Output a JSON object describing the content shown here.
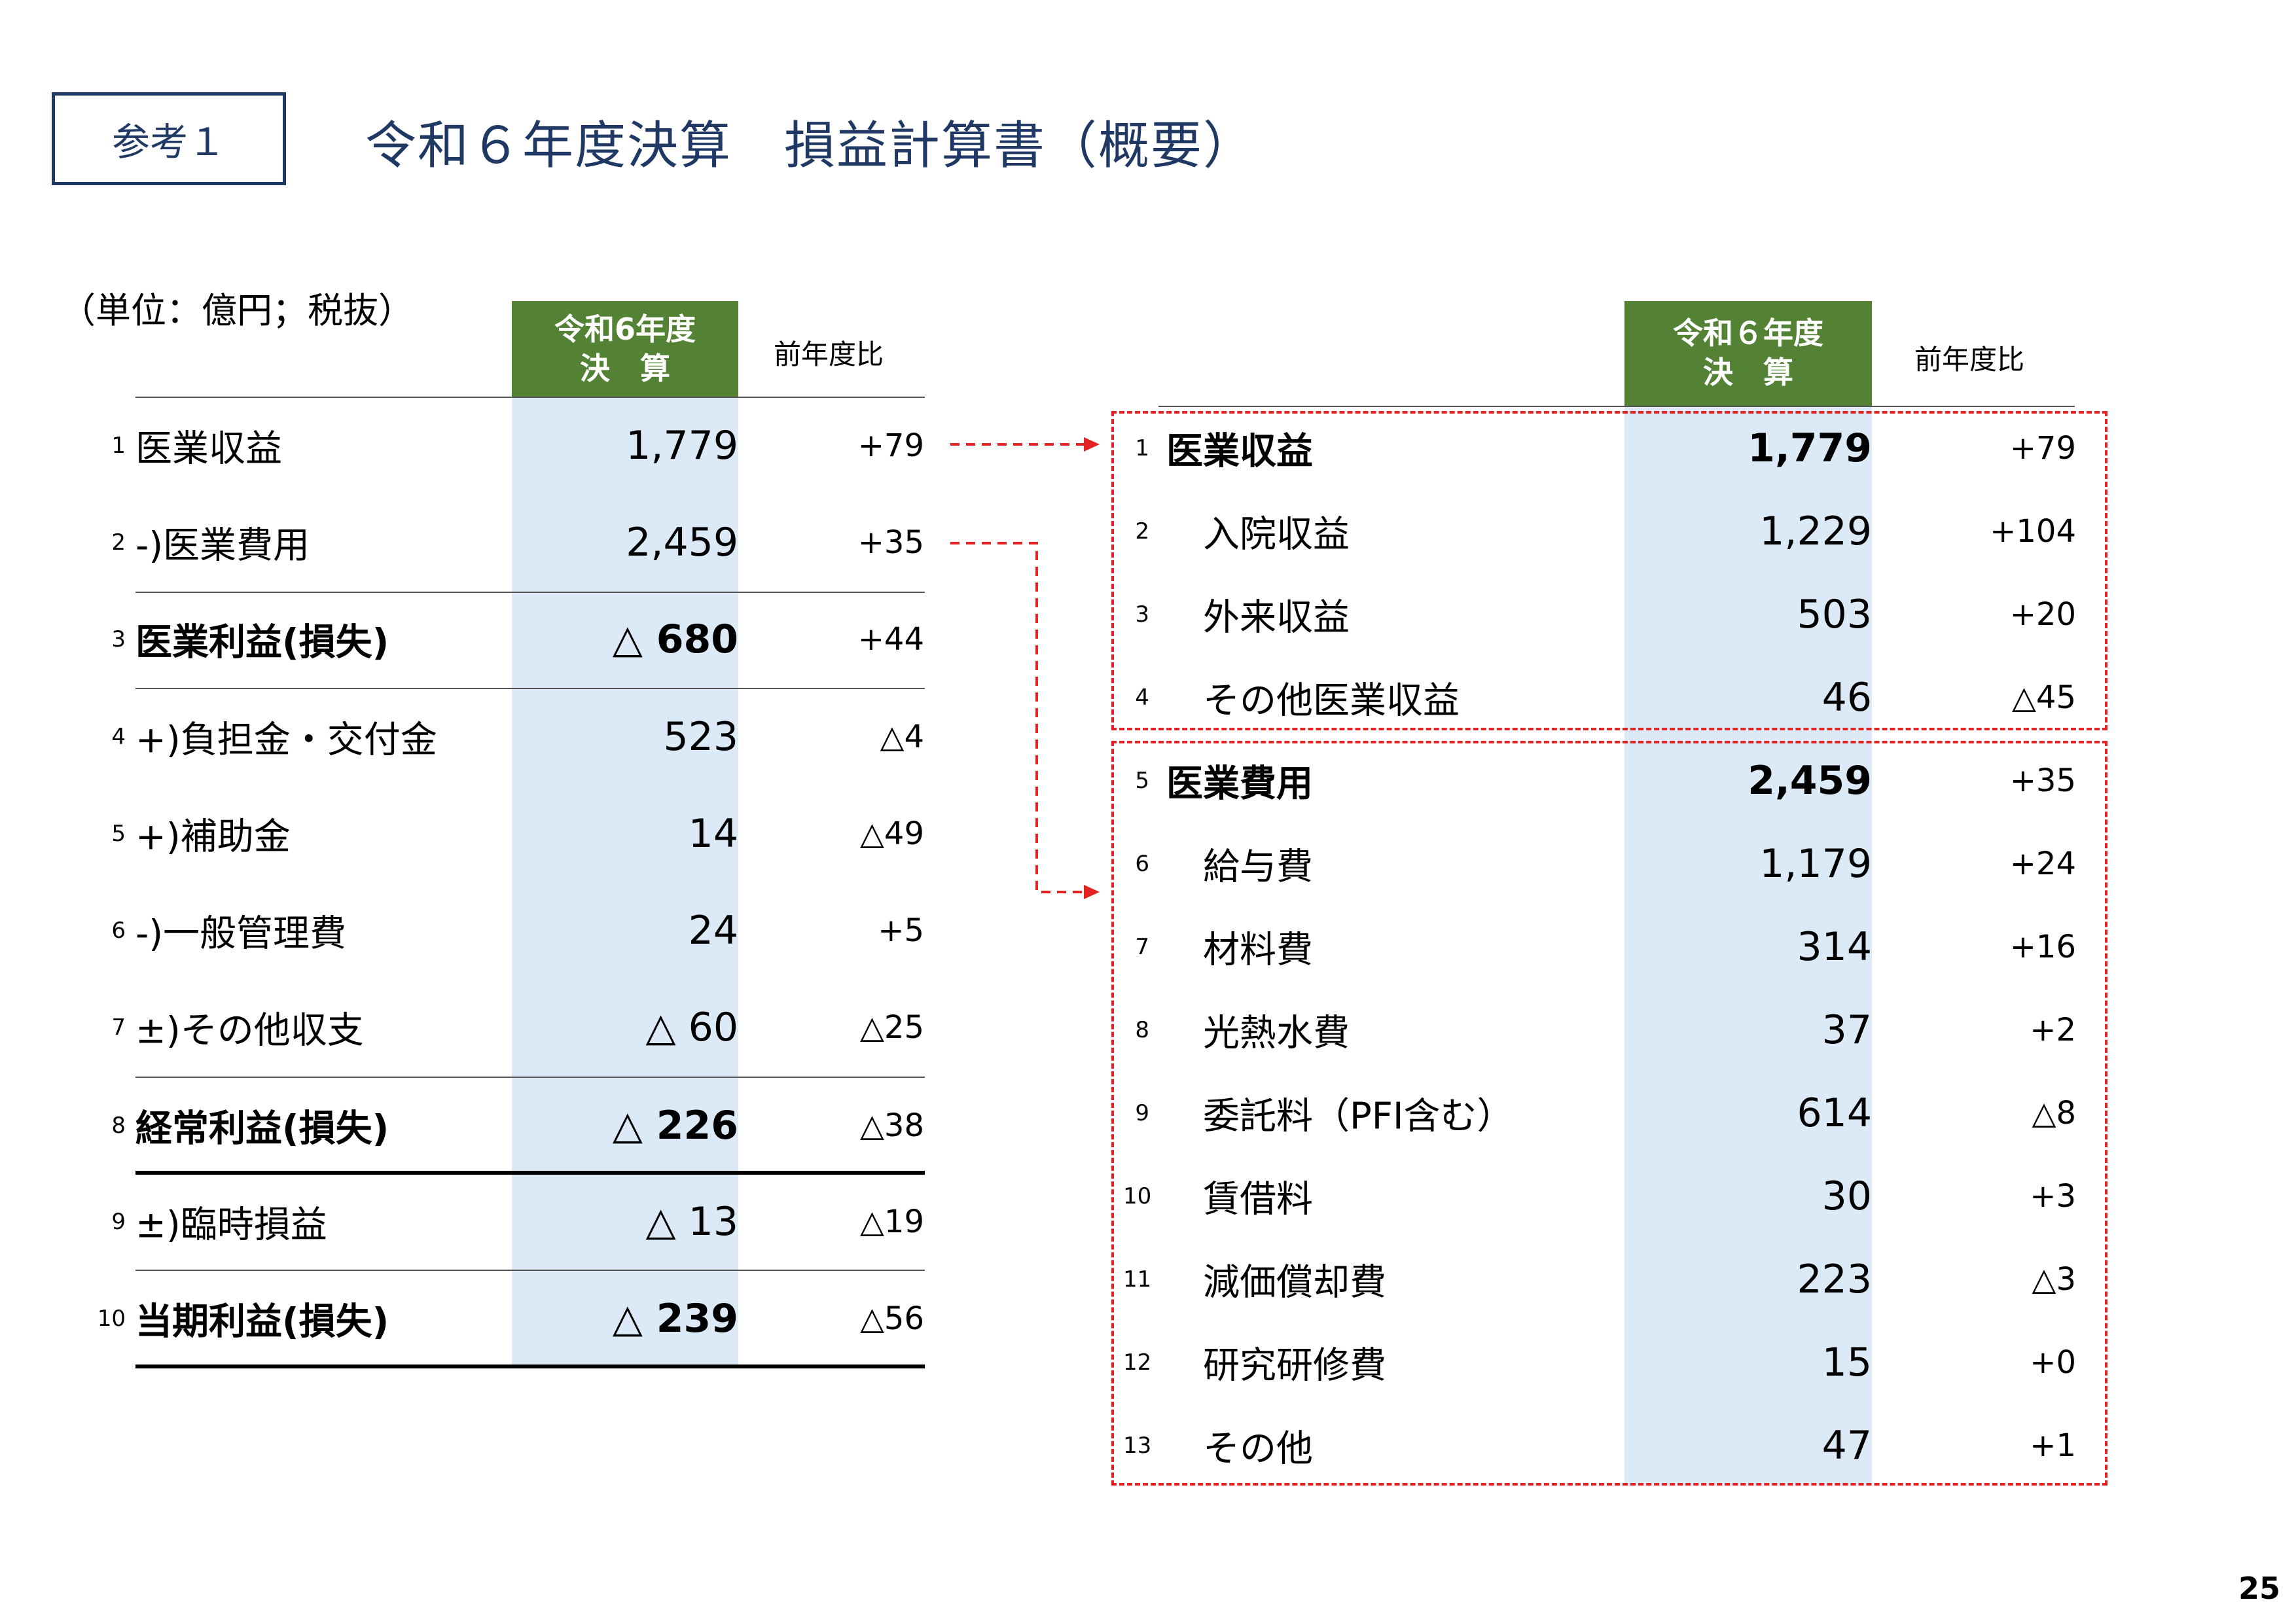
{
  "header": {
    "badge": "参考１",
    "title": "令和６年度決算　損益計算書（概要）",
    "unit": "（単位：億円；税抜）"
  },
  "left_table": {
    "col_header_line1": "令和6年度",
    "col_header_line2": "決　算",
    "diff_header": "前年度比",
    "rows": [
      {
        "no": "1",
        "label": "医業収益",
        "value": "1,779",
        "diff": "+79"
      },
      {
        "no": "2",
        "label": "-)医業費用",
        "value": "2,459",
        "diff": "+35"
      },
      {
        "no": "3",
        "label": "医業利益(損失)",
        "value": "△ 680",
        "diff": "+44"
      },
      {
        "no": "4",
        "label": "+)負担金・交付金",
        "value": "523",
        "diff": "△4"
      },
      {
        "no": "5",
        "label": "+)補助金",
        "value": "14",
        "diff": "△49"
      },
      {
        "no": "6",
        "label": "-)一般管理費",
        "value": "24",
        "diff": "+5"
      },
      {
        "no": "7",
        "label": "±)その他収支",
        "value": "△ 60",
        "diff": "△25"
      },
      {
        "no": "8",
        "label": "経常利益(損失)",
        "value": "△ 226",
        "diff": "△38"
      },
      {
        "no": "9",
        "label": "±)臨時損益",
        "value": "△ 13",
        "diff": "△19"
      },
      {
        "no": "10",
        "label": "当期利益(損失)",
        "value": "△ 239",
        "diff": "△56"
      }
    ]
  },
  "right_table": {
    "col_header_line1": "令和６年度",
    "col_header_line2": "決　算",
    "diff_header": "前年度比",
    "rows": [
      {
        "no": "1",
        "label": "医業収益",
        "value": "1,779",
        "diff": "+79"
      },
      {
        "no": "2",
        "label": "入院収益",
        "value": "1,229",
        "diff": "+104"
      },
      {
        "no": "3",
        "label": "外来収益",
        "value": "503",
        "diff": "+20"
      },
      {
        "no": "4",
        "label": "その他医業収益",
        "value": "46",
        "diff": "△45"
      },
      {
        "no": "5",
        "label": "医業費用",
        "value": "2,459",
        "diff": "+35"
      },
      {
        "no": "6",
        "label": "給与費",
        "value": "1,179",
        "diff": "+24"
      },
      {
        "no": "7",
        "label": "材料費",
        "value": "314",
        "diff": "+16"
      },
      {
        "no": "8",
        "label": "光熱水費",
        "value": "37",
        "diff": "+2"
      },
      {
        "no": "9",
        "label": "委託料（PFI含む）",
        "value": "614",
        "diff": "△8"
      },
      {
        "no": "10",
        "label": "賃借料",
        "value": "30",
        "diff": "+3"
      },
      {
        "no": "11",
        "label": "減価償却費",
        "value": "223",
        "diff": "△3"
      },
      {
        "no": "12",
        "label": "研究研修費",
        "value": "15",
        "diff": "+0"
      },
      {
        "no": "13",
        "label": "その他",
        "value": "47",
        "diff": "+1"
      }
    ]
  },
  "page_number": "25",
  "colors": {
    "navy": "#1f3864",
    "green": "#548235",
    "value_bg": "#dce9f6",
    "red": "#e32222"
  }
}
